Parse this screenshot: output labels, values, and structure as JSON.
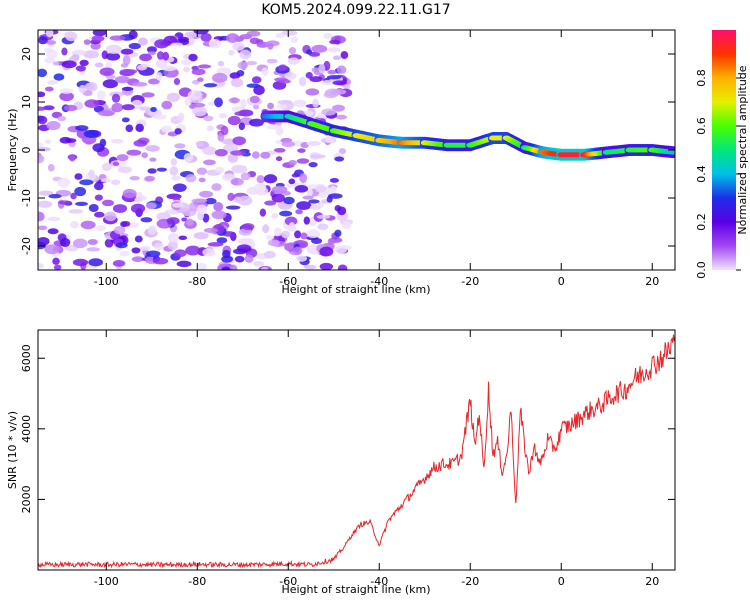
{
  "figure_title": "KOM5.2024.099.22.11.G17",
  "chart_data": [
    {
      "type": "heatmap",
      "xlabel": "Height of straight line (km)",
      "ylabel": "Frequency (Hz)",
      "xlim": [
        -115,
        25
      ],
      "ylim": [
        -25,
        25
      ],
      "xticks": [
        -100,
        -80,
        -60,
        -40,
        -20,
        0,
        20
      ],
      "yticks": [
        20,
        10,
        0,
        -10,
        -20
      ],
      "colorbar": {
        "label": "Normalized spectral amplitude",
        "range": [
          0.0,
          1.0
        ],
        "ticks": [
          0.0,
          0.2,
          0.4,
          0.6,
          0.8
        ],
        "colors": [
          "#f0e2ff",
          "#a347f0",
          "#5a00e6",
          "#1e2ee8",
          "#00bfe8",
          "#00e87a",
          "#48ff00",
          "#e6f000",
          "#ffb000",
          "#ff3200",
          "#ff0e6e"
        ]
      },
      "ridge": {
        "x": [
          -65,
          -60,
          -55,
          -50,
          -45,
          -40,
          -35,
          -30,
          -25,
          -20,
          -15,
          -12,
          -8,
          -4,
          0,
          5,
          10,
          15,
          20,
          25
        ],
        "frequency": [
          7,
          7,
          5.5,
          4,
          3,
          2,
          1.5,
          1.5,
          1,
          1,
          2.5,
          2.5,
          0.5,
          -0.5,
          -1,
          -1,
          -0.5,
          0,
          0,
          -0.5
        ],
        "amplitude": [
          0.35,
          0.45,
          0.6,
          0.6,
          0.7,
          0.75,
          0.85,
          0.7,
          0.55,
          0.55,
          0.7,
          0.7,
          0.5,
          0.85,
          0.95,
          0.95,
          0.5,
          0.55,
          0.6,
          0.4
        ]
      }
    },
    {
      "type": "line",
      "xlabel": "Height of straight line (km)",
      "ylabel": "SNR (10 * v/v)",
      "xlim": [
        -115,
        25
      ],
      "ylim": [
        0,
        6800
      ],
      "xticks": [
        -100,
        -80,
        -60,
        -40,
        -20,
        0,
        20
      ],
      "yticks": [
        2000,
        4000,
        6000
      ],
      "series": [
        {
          "color": "#e8262b",
          "x": [
            -115,
            -110,
            -105,
            -100,
            -95,
            -90,
            -85,
            -80,
            -75,
            -70,
            -65,
            -60,
            -55,
            -50,
            -48,
            -46,
            -44,
            -42,
            -40,
            -38,
            -36,
            -34,
            -32,
            -30,
            -28,
            -26,
            -24,
            -22,
            -20,
            -19,
            -18,
            -17,
            -16,
            -15,
            -14,
            -13,
            -12,
            -11,
            -10,
            -9,
            -8,
            -7,
            -6,
            -5,
            -4,
            -3,
            -2,
            -1,
            0,
            2,
            4,
            6,
            8,
            10,
            12,
            14,
            16,
            18,
            20,
            22,
            24,
            25
          ],
          "y": [
            150,
            150,
            160,
            150,
            160,
            150,
            150,
            160,
            150,
            150,
            160,
            180,
            150,
            300,
            600,
            1000,
            1300,
            1350,
            700,
            1400,
            1700,
            2000,
            2300,
            2600,
            2900,
            3000,
            3000,
            3200,
            4800,
            3500,
            4500,
            2800,
            5100,
            3300,
            3600,
            2800,
            3200,
            4600,
            1800,
            4500,
            3500,
            2700,
            3600,
            3000,
            3200,
            3700,
            3500,
            3500,
            4000,
            4100,
            4300,
            4500,
            4600,
            4800,
            5000,
            5100,
            5400,
            5600,
            5800,
            6000,
            6300,
            6600
          ]
        }
      ]
    }
  ]
}
